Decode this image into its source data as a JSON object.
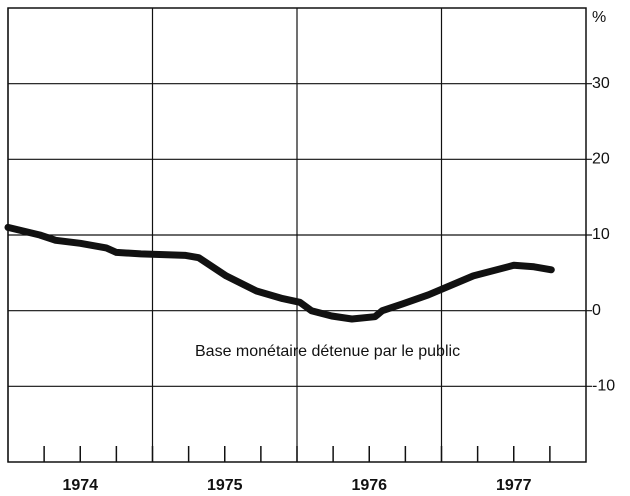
{
  "chart_data": {
    "type": "line",
    "y_unit": "%",
    "annotation": "Base monétaire détenue par le public",
    "x": [
      1974.0,
      1974.22,
      1974.33,
      1974.5,
      1974.68,
      1974.75,
      1974.92,
      1975.23,
      1975.32,
      1975.51,
      1975.72,
      1975.9,
      1976.02,
      1976.1,
      1976.24,
      1976.38,
      1976.54,
      1976.59,
      1976.73,
      1976.91,
      1977.22,
      1977.5,
      1977.64,
      1977.76
    ],
    "series": [
      {
        "name": "Base monétaire détenue par le public",
        "color": "#111111",
        "values": [
          11.0,
          10.0,
          9.3,
          8.9,
          8.3,
          7.7,
          7.5,
          7.3,
          7.0,
          4.6,
          2.6,
          1.6,
          1.1,
          0.0,
          -0.7,
          -1.1,
          -0.8,
          0.0,
          0.9,
          2.1,
          4.6,
          6.0,
          5.8,
          5.4
        ]
      }
    ],
    "xlim": [
      1974,
      1978
    ],
    "xticks": [
      1974,
      1975,
      1976,
      1977
    ],
    "ylim": [
      -20,
      40
    ],
    "yticks": [
      -10,
      0,
      10,
      20,
      30
    ],
    "grid": true
  }
}
